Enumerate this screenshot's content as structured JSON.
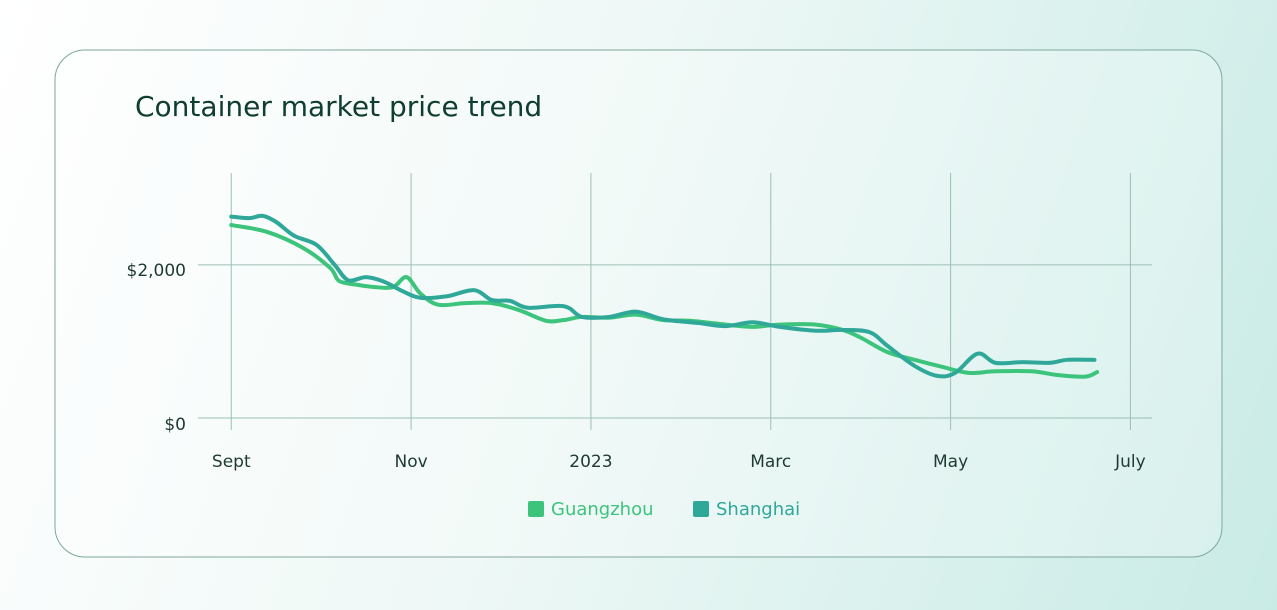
{
  "chart_data": {
    "type": "line",
    "title": "Container market price trend",
    "xlim": [
      -0.37,
      10.24
    ],
    "xticks": [
      {
        "value": 0,
        "label": "Sept"
      },
      {
        "value": 2,
        "label": "Nov"
      },
      {
        "value": 4,
        "label": "2023"
      },
      {
        "value": 6,
        "label": "Marc"
      },
      {
        "value": 8,
        "label": "May"
      },
      {
        "value": 10,
        "label": "July"
      }
    ],
    "ylim": [
      0,
      3200
    ],
    "yticks": [
      {
        "value": 0,
        "label": "$0"
      },
      {
        "value": 2000,
        "label": "$2,000"
      }
    ],
    "grid": true,
    "legend": "bottom",
    "series": [
      {
        "name": "Guangzhou",
        "color": "#3cc47c",
        "x": [
          0,
          0.4,
          0.8,
          1.1,
          1.2,
          1.4,
          1.6,
          1.8,
          1.95,
          2.1,
          2.3,
          2.6,
          2.9,
          3.2,
          3.5,
          3.7,
          3.9,
          4.2,
          4.5,
          4.8,
          5.1,
          5.5,
          5.8,
          6.1,
          6.5,
          6.8,
          7.0,
          7.3,
          7.6,
          7.9,
          8.2,
          8.5,
          8.9,
          9.2,
          9.5,
          9.63
        ],
        "values": [
          2520,
          2430,
          2220,
          1960,
          1790,
          1740,
          1710,
          1710,
          1840,
          1630,
          1480,
          1500,
          1500,
          1410,
          1270,
          1280,
          1320,
          1310,
          1350,
          1280,
          1270,
          1220,
          1190,
          1220,
          1220,
          1150,
          1050,
          860,
          760,
          670,
          590,
          610,
          610,
          560,
          540,
          600
        ]
      },
      {
        "name": "Shanghai",
        "color": "#2fa89a",
        "x": [
          0,
          0.2,
          0.35,
          0.5,
          0.7,
          0.95,
          1.15,
          1.3,
          1.5,
          1.7,
          1.9,
          2.1,
          2.4,
          2.7,
          2.9,
          3.1,
          3.3,
          3.7,
          3.9,
          4.2,
          4.5,
          4.8,
          5.2,
          5.5,
          5.8,
          6.1,
          6.5,
          6.8,
          7.1,
          7.3,
          7.6,
          7.85,
          8.05,
          8.3,
          8.5,
          8.8,
          9.1,
          9.3,
          9.6
        ],
        "values": [
          2630,
          2610,
          2640,
          2560,
          2380,
          2260,
          2000,
          1800,
          1840,
          1780,
          1660,
          1570,
          1590,
          1670,
          1540,
          1530,
          1440,
          1460,
          1320,
          1320,
          1390,
          1290,
          1240,
          1200,
          1250,
          1190,
          1140,
          1150,
          1120,
          940,
          680,
          550,
          590,
          840,
          720,
          730,
          720,
          760,
          760
        ]
      }
    ]
  }
}
